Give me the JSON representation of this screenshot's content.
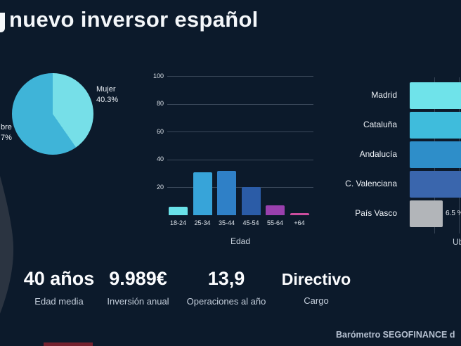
{
  "page": {
    "background": "#0c1a2b",
    "title_visible": "nuevo inversor español",
    "title_cropped_letter_fragment_at_left": true,
    "footer_visible": "Barómetro SEGOFINANCE d"
  },
  "chart_data": [
    {
      "type": "pie",
      "name": "genero-del-inversor",
      "slices": [
        {
          "label": "Mujer",
          "value": 40.3,
          "value_label": "40.3%",
          "color": "#76dfe8",
          "label_position": "outside-right"
        },
        {
          "label_visible": "bre",
          "value_label_visible": "7%",
          "value": 59.7,
          "color": "#3fb4d8",
          "label_position": "outside-left-cropped"
        }
      ],
      "start_angle_deg": 0,
      "direction": "clockwise"
    },
    {
      "type": "bar",
      "name": "edad",
      "xlabel": "Edad",
      "categories": [
        "18-24",
        "25-34",
        "35-44",
        "45-54",
        "55-64",
        "+64"
      ],
      "values": [
        6,
        31,
        32,
        20,
        7,
        1.5
      ],
      "bar_colors": [
        "#69e1e9",
        "#37a4d9",
        "#2f80c7",
        "#2b5ca7",
        "#9a40ae",
        "#cb4d9d"
      ],
      "yticks": [
        20,
        40,
        60,
        80,
        100
      ],
      "ylim": [
        0,
        100
      ],
      "grid": true,
      "legend_position": "none"
    },
    {
      "type": "horizontal-bar",
      "name": "ubicacion",
      "xlabel": "Ubicación",
      "xlabel_clipped_to": "Ub",
      "categories": [
        "Madrid",
        "Cataluña",
        "Andalucía",
        "C. Valenciana",
        "País Vasco"
      ],
      "values": [
        null,
        null,
        null,
        null,
        6.5
      ],
      "value_labels": [
        "",
        "",
        "",
        "",
        "6.5 %"
      ],
      "bars_cut_off_at_right_edge": [
        true,
        true,
        true,
        true,
        false
      ],
      "bar_colors": [
        "#6fe3ea",
        "#3fbcdc",
        "#2e8ec9",
        "#3a66ad",
        "#b2b5b9"
      ],
      "grid": true,
      "legend_position": "none"
    }
  ],
  "stats": [
    {
      "value": "40 años",
      "label": "Edad media"
    },
    {
      "value": "9.989€",
      "label": "Inversión anual"
    },
    {
      "value": "13,9",
      "label": "Operaciones al año"
    },
    {
      "value": "Directivo",
      "label": "Cargo"
    }
  ]
}
